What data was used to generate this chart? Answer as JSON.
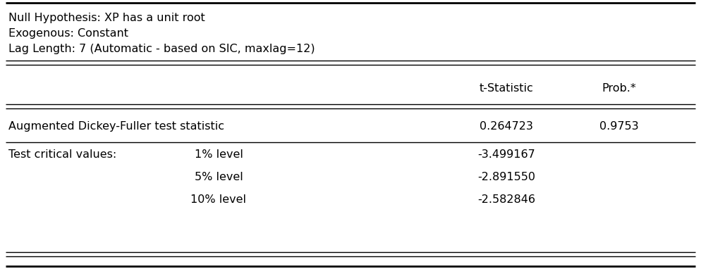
{
  "header_lines": [
    "Null Hypothesis: XP has a unit root",
    "Exogenous: Constant",
    "Lag Length: 7 (Automatic - based on SIC, maxlag=12)"
  ],
  "col_header_t": "t-Statistic",
  "col_header_p": "Prob.*",
  "adf_label": "Augmented Dickey-Fuller test statistic",
  "adf_t_stat": "0.264723",
  "adf_prob": "0.9753",
  "critical_label": "Test critical values:",
  "critical_rows": [
    {
      "level": "1% level",
      "value": "-3.499167"
    },
    {
      "level": "5% level",
      "value": "-2.891550"
    },
    {
      "level": "10% level",
      "value": "-2.582846"
    }
  ],
  "bg_color": "#ffffff",
  "text_color": "#000000",
  "border_color": "#000000",
  "font_size": 11.5
}
